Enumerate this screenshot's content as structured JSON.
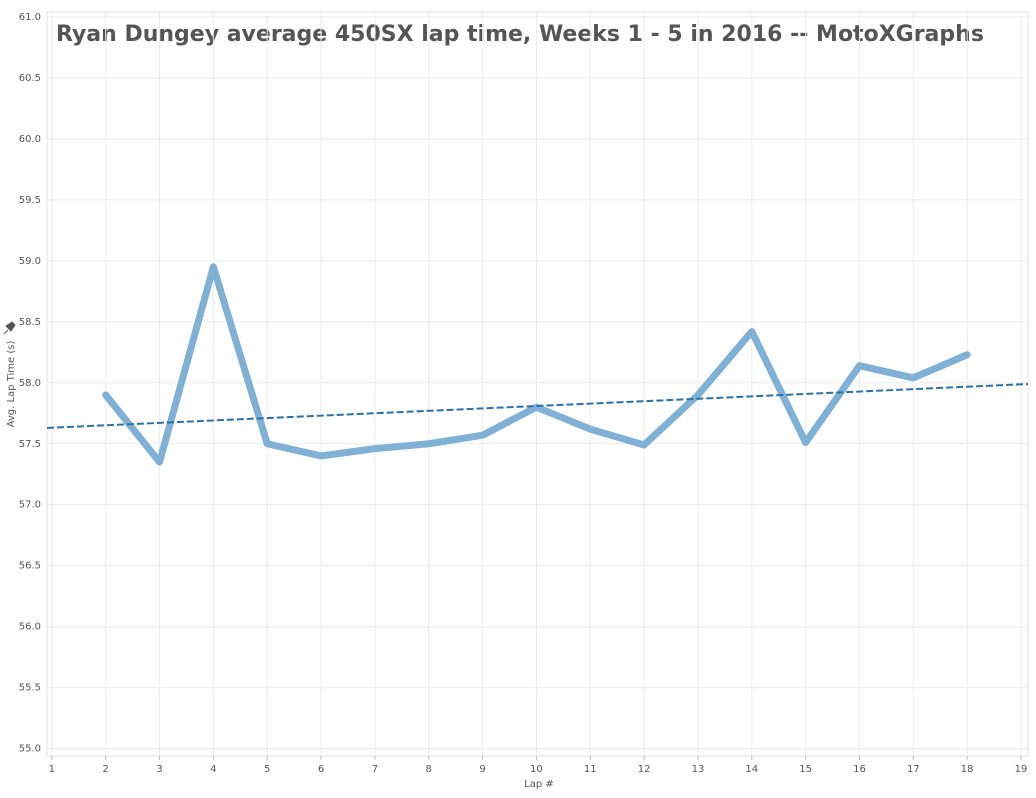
{
  "chart_data": {
    "type": "line",
    "title": "Ryan Dungey average 450SX lap time, Weeks 1 - 5 in 2016 -- MotoXGraphs",
    "x_label": "Lap #",
    "y_label": "Avg. Lap Time (s)",
    "x": [
      2,
      3,
      4,
      5,
      6,
      7,
      8,
      9,
      10,
      11,
      12,
      13,
      14,
      15,
      16,
      17,
      18
    ],
    "values": [
      57.9,
      57.35,
      58.95,
      57.5,
      57.4,
      57.46,
      57.5,
      57.57,
      57.8,
      57.62,
      57.49,
      57.9,
      58.42,
      57.51,
      58.14,
      58.04,
      58.23
    ],
    "color": "#7fb0d5",
    "trend": {
      "x": [
        0.91,
        19.13
      ],
      "values": [
        57.63,
        57.99
      ],
      "color": "#2e6fa8"
    },
    "xlim": [
      0.91,
      19.13
    ],
    "xticks": [
      1,
      2,
      3,
      4,
      5,
      6,
      7,
      8,
      9,
      10,
      11,
      12,
      13,
      14,
      15,
      16,
      17,
      18,
      19
    ],
    "ylim": [
      54.94,
      61.04
    ],
    "yticks": [
      {
        "value": 55,
        "label": "55.0"
      },
      {
        "value": 55.5,
        "label": "55.5"
      },
      {
        "value": 56,
        "label": "56.0"
      },
      {
        "value": 56.5,
        "label": "56.5"
      },
      {
        "value": 57,
        "label": "57.0"
      },
      {
        "value": 57.5,
        "label": "57.5"
      },
      {
        "value": 58,
        "label": "58.0"
      },
      {
        "value": 58.5,
        "label": "58.5"
      },
      {
        "value": 59,
        "label": "59.0"
      },
      {
        "value": 59.5,
        "label": "59.5"
      },
      {
        "value": 60,
        "label": "60.0"
      },
      {
        "value": 60.5,
        "label": "60.5"
      },
      {
        "value": 61,
        "label": "61.0"
      }
    ],
    "grid": true
  }
}
